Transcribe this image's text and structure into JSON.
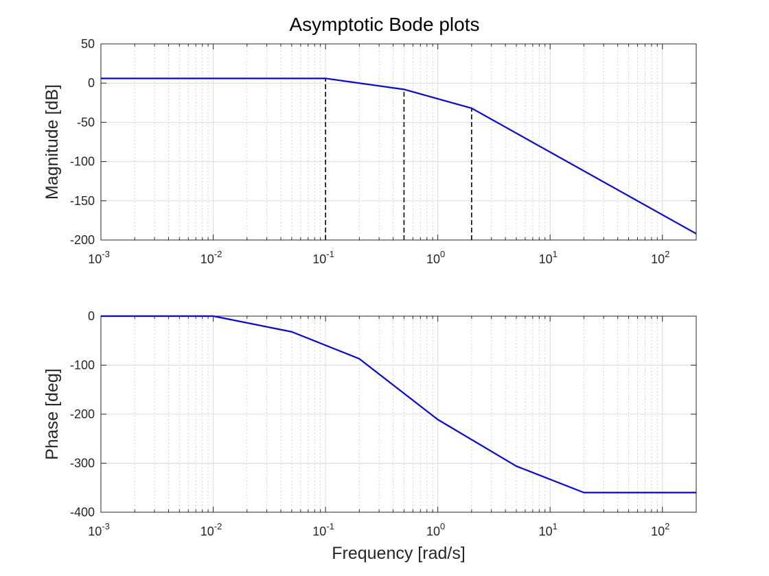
{
  "figure": {
    "title": "Asymptotic Bode plots",
    "background": "#ffffff"
  },
  "chart_data": [
    {
      "type": "line",
      "title": "Asymptotic Bode plots",
      "xlabel": "",
      "ylabel": "Magnitude [dB]",
      "xscale": "log",
      "xlim": [
        0.001,
        200
      ],
      "ylim": [
        -200,
        50
      ],
      "grid": "on (major and minor)",
      "x_ticks": [
        {
          "base": "10",
          "exp": "-3"
        },
        {
          "base": "10",
          "exp": "-2"
        },
        {
          "base": "10",
          "exp": "-1"
        },
        {
          "base": "10",
          "exp": "0"
        },
        {
          "base": "10",
          "exp": "1"
        },
        {
          "base": "10",
          "exp": "2"
        }
      ],
      "y_ticks": [
        "50",
        "0",
        "-50",
        "-100",
        "-150",
        "-200"
      ],
      "series": [
        {
          "color": "#0000ff",
          "x": [
            0.001,
            0.1,
            0.5,
            2,
            200
          ],
          "y": [
            6,
            6,
            -8,
            -32,
            -192
          ]
        }
      ],
      "markers": [
        {
          "style": "dashed",
          "color": "#000000",
          "x": 0.1,
          "y_from": -200,
          "y_to": 6
        },
        {
          "style": "dashed",
          "color": "#000000",
          "x": 0.5,
          "y_from": -200,
          "y_to": -8
        },
        {
          "style": "dashed",
          "color": "#000000",
          "x": 2,
          "y_from": -200,
          "y_to": -32
        }
      ]
    },
    {
      "type": "line",
      "title": "",
      "xlabel": "Frequency [rad/s]",
      "ylabel": "Phase [deg]",
      "xscale": "log",
      "xlim": [
        0.001,
        200
      ],
      "ylim": [
        -400,
        0
      ],
      "grid": "on (major and minor)",
      "x_ticks": [
        {
          "base": "10",
          "exp": "-3"
        },
        {
          "base": "10",
          "exp": "-2"
        },
        {
          "base": "10",
          "exp": "-1"
        },
        {
          "base": "10",
          "exp": "0"
        },
        {
          "base": "10",
          "exp": "1"
        },
        {
          "base": "10",
          "exp": "2"
        }
      ],
      "y_ticks": [
        "0",
        "-100",
        "-200",
        "-300",
        "-400"
      ],
      "series": [
        {
          "color": "#0000ff",
          "x": [
            0.001,
            0.01,
            0.05,
            0.2,
            1,
            5,
            20,
            200
          ],
          "y": [
            0,
            0,
            -32,
            -87,
            -211,
            -306,
            -360,
            -360
          ]
        }
      ],
      "markers": []
    }
  ]
}
